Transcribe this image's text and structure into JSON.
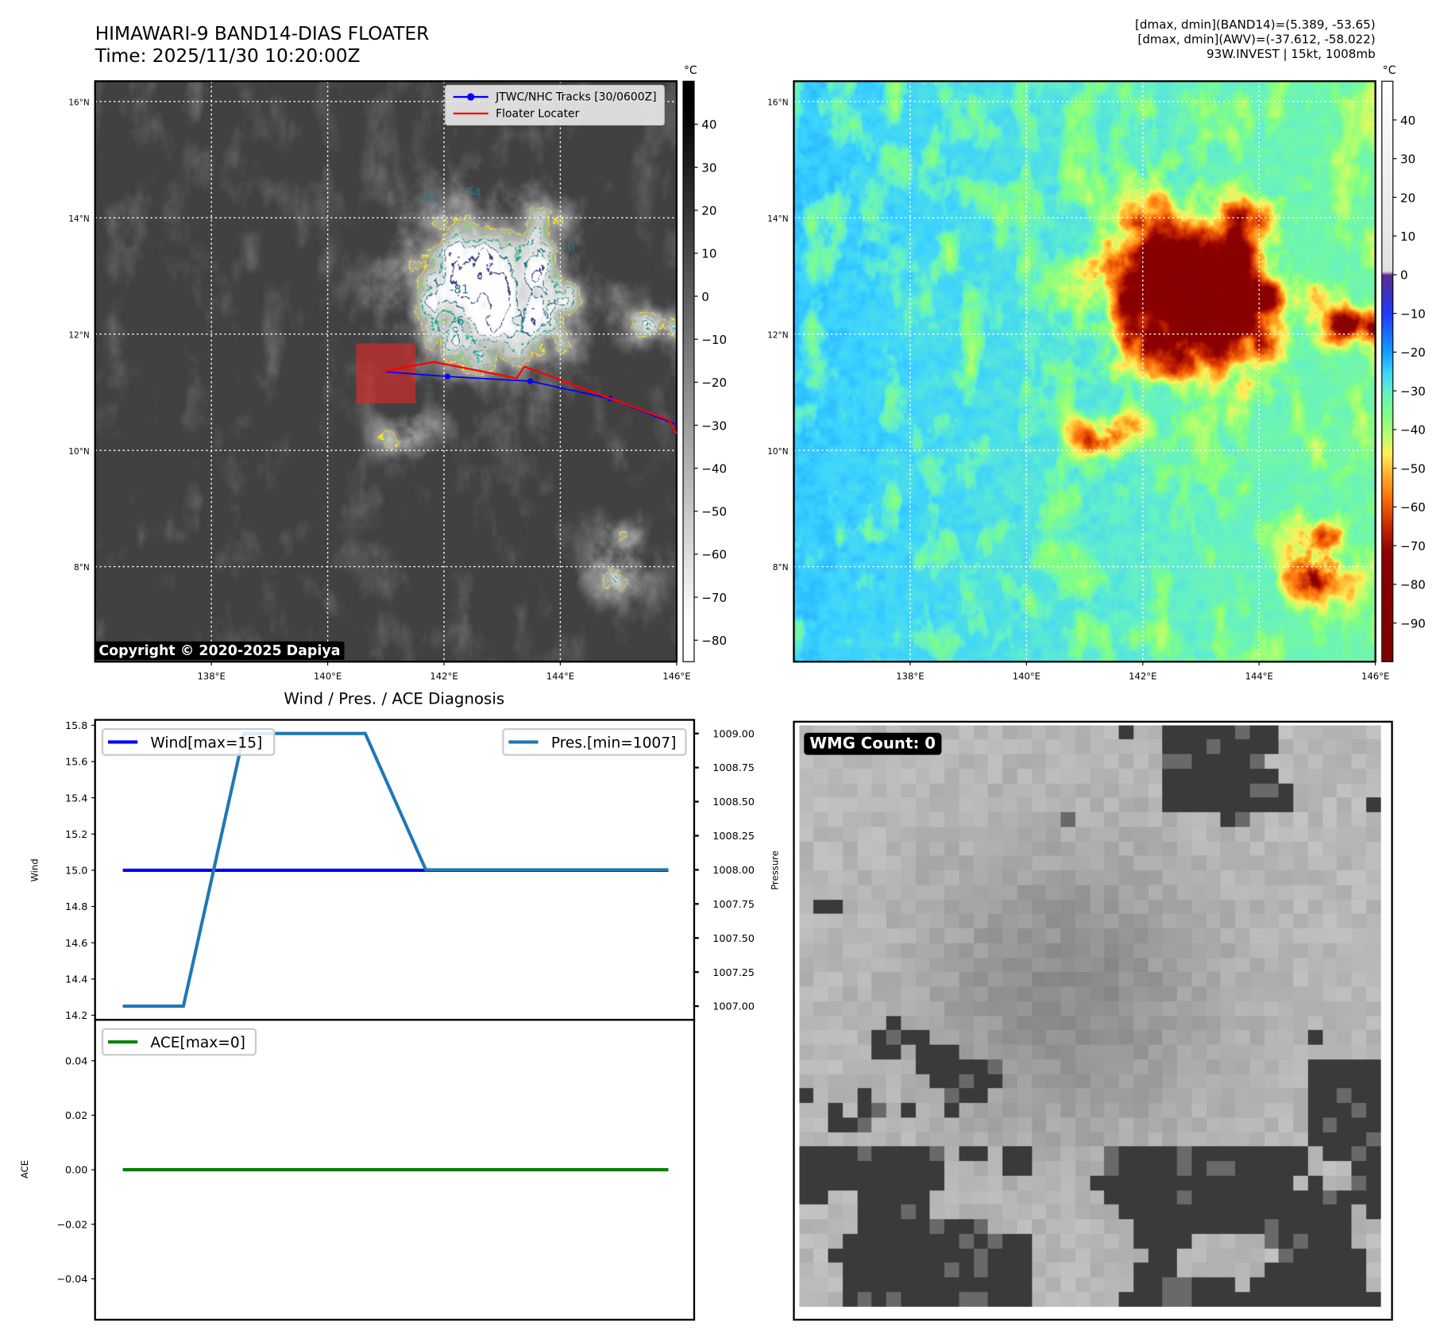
{
  "header": {
    "title": "HIMAWARI-9 BAND14-DIAS FLOATER",
    "time": "Time: 2025/11/30 10:20:00Z",
    "info_lines": [
      "[dmax, dmin](BAND14)=(5.389, -53.65)",
      "[dmax, dmin](AWV)=(-37.612, -58.022)",
      "93W.INVEST | 15kt, 1008mb"
    ]
  },
  "colors": {
    "track": "#0000ff",
    "floater": "#ff0000",
    "wind": "#0000ff",
    "pressure": "#1f77b4",
    "ace": "#008000"
  },
  "chart_data": [
    {
      "type": "heatmap",
      "name": "band14-ir-map",
      "colormap": "gray_r",
      "colorbar_unit": "°C",
      "colorbar_ticks": [
        40,
        30,
        20,
        10,
        0,
        -10,
        -20,
        -30,
        -40,
        -50,
        -60,
        -70,
        -80
      ],
      "colorbar_range": [
        -85,
        50
      ],
      "lon_range": [
        136,
        146
      ],
      "lat_range": [
        6.35,
        16.35
      ],
      "lon_ticks": [
        "138°E",
        "140°E",
        "142°E",
        "144°E",
        "146°E"
      ],
      "lat_ticks": [
        "16°N",
        "14°N",
        "12°N",
        "10°N",
        "8°N"
      ],
      "contour_levels": [
        -31,
        -42,
        -54,
        -66,
        -81,
        -90
      ],
      "contour_labels": [
        "-31",
        "-54",
        "-81",
        "-6",
        "-6"
      ],
      "legend": [
        "JTWC/NHC Tracks [30/0600Z]",
        "Floater Locater"
      ],
      "track": [
        [
          141.0,
          11.35
        ],
        [
          142.06,
          11.27
        ],
        [
          143.48,
          11.19
        ],
        [
          144.86,
          10.89
        ],
        [
          146.0,
          10.44
        ]
      ],
      "track_points": [
        [
          142.06,
          11.27
        ],
        [
          143.48,
          11.19
        ],
        [
          144.86,
          10.89
        ]
      ],
      "floater": [
        [
          141.0,
          11.37
        ],
        [
          141.83,
          11.52
        ],
        [
          143.25,
          11.24
        ],
        [
          143.38,
          11.44
        ],
        [
          145.87,
          10.52
        ],
        [
          146.0,
          10.29
        ]
      ],
      "floater_box": {
        "lon": [
          140.49,
          141.51
        ],
        "lat": [
          10.81,
          11.84
        ]
      },
      "storm_center": [
        142.8,
        12.8
      ],
      "copyright": "Copyright © 2020-2025 Dapiya"
    },
    {
      "type": "heatmap",
      "name": "awv-map",
      "colormap": "awv",
      "colorbar_unit": "°C",
      "colorbar_ticks": [
        40,
        30,
        20,
        10,
        0,
        -10,
        -20,
        -30,
        -40,
        -50,
        -60,
        -70,
        -80,
        -90
      ],
      "colorbar_range": [
        -100,
        50
      ],
      "lon_range": [
        136,
        146
      ],
      "lat_range": [
        6.35,
        16.35
      ],
      "lon_ticks": [
        "138°E",
        "140°E",
        "142°E",
        "144°E",
        "146°E"
      ],
      "lat_ticks": [
        "16°N",
        "14°N",
        "12°N",
        "10°N",
        "8°N"
      ]
    },
    {
      "type": "line",
      "name": "wind-pressure",
      "title": "Wind / Pres. / ACE Diagnosis",
      "x": [
        0,
        1,
        2,
        3,
        4,
        5,
        6,
        7,
        8,
        9
      ],
      "ylabel": "Wind",
      "ylabel_right": "Pressure",
      "ylim": [
        14.175,
        15.83
      ],
      "ylim_right": [
        1006.9,
        1009.1
      ],
      "yticks": [
        "14.2",
        "14.4",
        "14.6",
        "14.8",
        "15.0",
        "15.2",
        "15.4",
        "15.6",
        "15.8"
      ],
      "yticks_right": [
        "1007.00",
        "1007.25",
        "1007.50",
        "1007.75",
        "1008.00",
        "1008.25",
        "1008.50",
        "1008.75",
        "1009.00"
      ],
      "series": [
        {
          "name": "Wind[max=15]",
          "axis": "left",
          "values": [
            15,
            15,
            15,
            15,
            15,
            15,
            15,
            15,
            15,
            15
          ]
        },
        {
          "name": "Pres.[min=1007]",
          "axis": "right",
          "values": [
            1007,
            1007,
            1009,
            1009,
            1009,
            1008,
            1008,
            1008,
            1008,
            1008
          ]
        }
      ],
      "legend": [
        "top-left",
        "top-right"
      ]
    },
    {
      "type": "line",
      "name": "ace",
      "x": [
        0,
        1,
        2,
        3,
        4,
        5,
        6,
        7,
        8,
        9
      ],
      "ylabel": "ACE",
      "ylim": [
        -0.055,
        0.055
      ],
      "yticks": [
        "−0.04",
        "−0.02",
        "0.00",
        "0.02",
        "0.04"
      ],
      "series": [
        {
          "name": "ACE[max=0]",
          "values": [
            0,
            0,
            0,
            0,
            0,
            0,
            0,
            0,
            0,
            0
          ]
        }
      ],
      "legend": "top-left"
    },
    {
      "type": "heatmap",
      "name": "wmg-panel",
      "label": "WMG Count: 0"
    }
  ]
}
